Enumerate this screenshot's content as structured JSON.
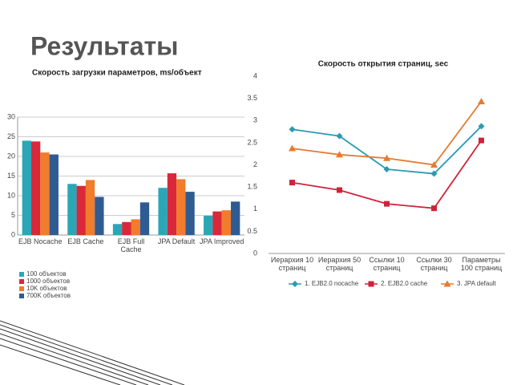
{
  "title": "Результаты",
  "chart_data": [
    {
      "type": "bar",
      "title": "Скорость загрузки параметров, ms/объект",
      "categories": [
        "EJB Nocache",
        "EJB Cache",
        "EJB Full Cache",
        "JPA Default",
        "JPA Improved"
      ],
      "series": [
        {
          "name": "100 объектов",
          "color": "#2ba6b7",
          "values": [
            24,
            13,
            2.8,
            12,
            4.9
          ]
        },
        {
          "name": "1000 объектов",
          "color": "#d9283a",
          "values": [
            23.8,
            12.5,
            3.3,
            15.7,
            6
          ]
        },
        {
          "name": "10K объектов",
          "color": "#f07c2c",
          "values": [
            21,
            14,
            4,
            14.2,
            6.3
          ]
        },
        {
          "name": "700K объектов",
          "color": "#2f5b93",
          "values": [
            20.5,
            9.7,
            8.3,
            11,
            8.5
          ]
        }
      ],
      "ylim": [
        0,
        30
      ],
      "yticks": [
        0,
        5,
        10,
        15,
        20,
        25,
        30
      ],
      "grid": true,
      "legend": "bottom"
    },
    {
      "type": "line",
      "title": "Скорость открытия страниц, sec",
      "categories": [
        "Иерархия 10 страниц",
        "Иерархия 50 страниц",
        "Ссылки 10 страниц",
        "Ссылки 30 страниц",
        "Параметры 100 страниц"
      ],
      "series": [
        {
          "name": "1. EJB2.0 nocache",
          "color": "#2a9bb0",
          "marker": "diamond",
          "values": [
            2.8,
            2.65,
            1.9,
            1.8,
            2.87
          ]
        },
        {
          "name": "2. EJB2.0 cache",
          "color": "#d0223a",
          "marker": "square",
          "values": [
            1.6,
            1.43,
            1.12,
            1.02,
            2.55
          ]
        },
        {
          "name": "3. JPA default",
          "color": "#e67a30",
          "marker": "triangle",
          "values": [
            2.37,
            2.23,
            2.15,
            2.0,
            3.43
          ]
        }
      ],
      "ylim": [
        0,
        4
      ],
      "yticks": [
        0,
        0.5,
        1,
        1.5,
        2,
        2.5,
        3,
        3.5,
        4
      ],
      "grid": false,
      "legend": "bottom"
    }
  ]
}
